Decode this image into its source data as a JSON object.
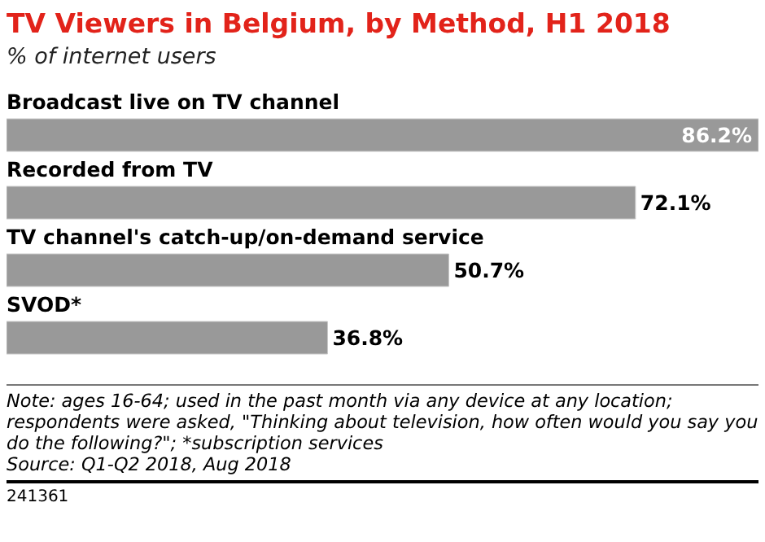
{
  "chart_data": {
    "type": "bar",
    "orientation": "horizontal",
    "title": "TV Viewers in Belgium, by Method, H1 2018",
    "subtitle": "% of internet users",
    "categories": [
      "Broadcast live on TV channel",
      "Recorded from TV",
      "TV channel's catch-up/on-demand service",
      "SVOD*"
    ],
    "values": [
      86.2,
      72.1,
      50.7,
      36.8
    ],
    "value_labels": [
      "86.2%",
      "72.1%",
      "50.7%",
      "36.8%"
    ],
    "color": "#999999",
    "annotations": [
      "Note: ages 16-64; used in the past month via any device at any location; respondents were asked, \"Thinking about television, how often would you say you do the following?\"; *subscription services",
      "Source: Q1-Q2 2018, Aug 2018",
      "241361"
    ]
  }
}
